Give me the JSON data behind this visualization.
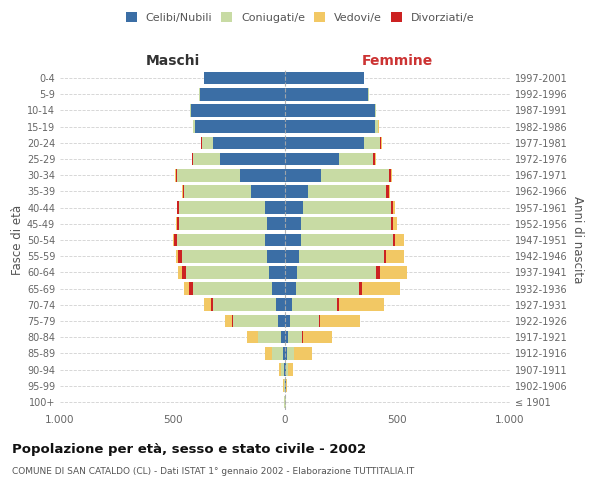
{
  "age_groups": [
    "100+",
    "95-99",
    "90-94",
    "85-89",
    "80-84",
    "75-79",
    "70-74",
    "65-69",
    "60-64",
    "55-59",
    "50-54",
    "45-49",
    "40-44",
    "35-39",
    "30-34",
    "25-29",
    "20-24",
    "15-19",
    "10-14",
    "5-9",
    "0-4"
  ],
  "birth_years": [
    "≤ 1901",
    "1902-1906",
    "1907-1911",
    "1912-1916",
    "1917-1921",
    "1922-1926",
    "1927-1931",
    "1932-1936",
    "1937-1941",
    "1942-1946",
    "1947-1951",
    "1952-1956",
    "1957-1961",
    "1962-1966",
    "1967-1971",
    "1972-1976",
    "1977-1981",
    "1982-1986",
    "1987-1991",
    "1992-1996",
    "1997-2001"
  ],
  "male": {
    "celibi": [
      2,
      2,
      5,
      10,
      20,
      30,
      40,
      60,
      70,
      80,
      90,
      80,
      90,
      150,
      200,
      290,
      320,
      400,
      420,
      380,
      360
    ],
    "coniugati": [
      1,
      3,
      15,
      50,
      100,
      200,
      280,
      350,
      370,
      380,
      390,
      390,
      380,
      300,
      280,
      120,
      50,
      10,
      2,
      2,
      2
    ],
    "vedovi": [
      0,
      2,
      5,
      30,
      50,
      30,
      30,
      25,
      15,
      10,
      5,
      5,
      3,
      2,
      2,
      2,
      2,
      1,
      0,
      0,
      0
    ],
    "divorziati": [
      0,
      0,
      0,
      0,
      0,
      5,
      10,
      15,
      20,
      15,
      15,
      10,
      8,
      5,
      5,
      3,
      2,
      0,
      0,
      0,
      0
    ]
  },
  "female": {
    "nubili": [
      2,
      3,
      5,
      10,
      15,
      20,
      30,
      50,
      55,
      60,
      70,
      70,
      80,
      100,
      160,
      240,
      350,
      400,
      400,
      370,
      350
    ],
    "coniugate": [
      1,
      3,
      10,
      30,
      60,
      130,
      200,
      280,
      350,
      380,
      410,
      400,
      390,
      350,
      300,
      150,
      70,
      15,
      3,
      2,
      2
    ],
    "vedove": [
      0,
      5,
      20,
      80,
      130,
      180,
      200,
      170,
      120,
      80,
      40,
      20,
      10,
      5,
      5,
      5,
      5,
      2,
      0,
      0,
      0
    ],
    "divorziate": [
      0,
      0,
      0,
      0,
      5,
      5,
      10,
      10,
      15,
      10,
      10,
      8,
      8,
      10,
      10,
      8,
      5,
      0,
      0,
      0,
      0
    ]
  },
  "colors": {
    "celibi_nubili": "#3b6ea5",
    "coniugati": "#c8dba4",
    "vedovi": "#f2c864",
    "divorziati": "#cc2222"
  },
  "xlim": 1000,
  "title": "Popolazione per età, sesso e stato civile - 2002",
  "subtitle": "COMUNE DI SAN CATALDO (CL) - Dati ISTAT 1° gennaio 2002 - Elaborazione TUTTITALIA.IT",
  "ylabel_left": "Fasce di età",
  "ylabel_right": "Anni di nascita",
  "xlabel_left": "Maschi",
  "xlabel_right": "Femmine",
  "background_color": "#ffffff",
  "grid_color": "#cccccc"
}
